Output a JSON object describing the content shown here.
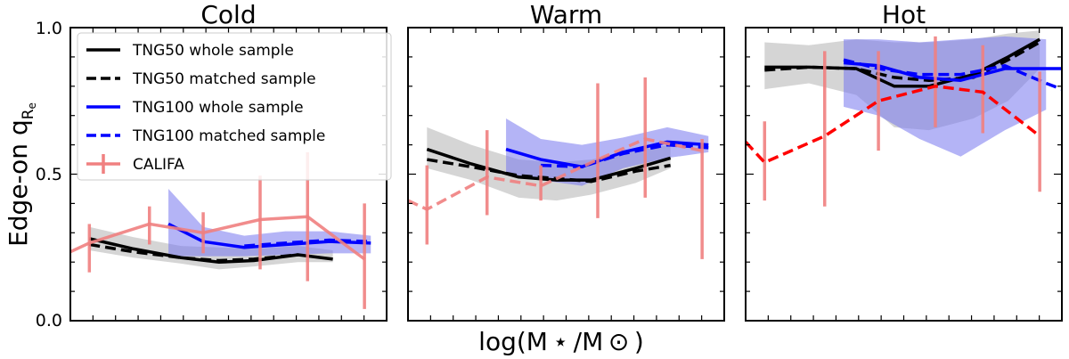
{
  "figure": {
    "ylabel_main": "Edge-on q",
    "ylabel_sub": "R",
    "ylabel_subsub": "e",
    "xlabel": "log(M ⋆ /M ⊙ )",
    "yticks": [
      "0.0",
      "0.5",
      "1.0"
    ]
  },
  "legend": [
    {
      "label": "TNG50 whole sample",
      "color": "#000000",
      "dash": "solid",
      "errorbar": false
    },
    {
      "label": "TNG50 matched sample",
      "color": "#000000",
      "dash": "dashed",
      "errorbar": false
    },
    {
      "label": "TNG100 whole sample",
      "color": "#0000ff",
      "dash": "solid",
      "errorbar": false
    },
    {
      "label": "TNG100 matched sample",
      "color": "#0000ff",
      "dash": "dashed",
      "errorbar": false
    },
    {
      "label": "CALIFA",
      "color": "#f08080",
      "dash": "solid",
      "errorbar": true
    }
  ],
  "chart_data": [
    {
      "type": "line",
      "title": "Cold",
      "ylim": [
        0,
        1
      ],
      "series": [
        {
          "name": "TNG50 whole sample",
          "color": "#000000",
          "dash": "solid",
          "x": [
            0.06,
            0.2,
            0.35,
            0.47,
            0.58,
            0.72,
            0.83
          ],
          "y": [
            0.28,
            0.245,
            0.215,
            0.2,
            0.205,
            0.225,
            0.21
          ]
        },
        {
          "name": "TNG50 matched sample",
          "color": "#000000",
          "dash": "dashed",
          "x": [
            0.06,
            0.2,
            0.35,
            0.47,
            0.58,
            0.72
          ],
          "y": [
            0.26,
            0.235,
            0.215,
            0.205,
            0.21,
            0.225
          ]
        },
        {
          "name": "TNG50 band",
          "kind": "band",
          "color": "#bebebe",
          "x": [
            0.06,
            0.2,
            0.35,
            0.47,
            0.58,
            0.72,
            0.83
          ],
          "lo": [
            0.24,
            0.215,
            0.195,
            0.175,
            0.185,
            0.2,
            0.2
          ],
          "hi": [
            0.32,
            0.285,
            0.255,
            0.25,
            0.245,
            0.255,
            0.24
          ]
        },
        {
          "name": "TNG100 whole sample",
          "color": "#0000ff",
          "dash": "solid",
          "x": [
            0.31,
            0.42,
            0.55,
            0.68,
            0.82,
            0.95
          ],
          "y": [
            0.33,
            0.27,
            0.25,
            0.26,
            0.27,
            0.265
          ]
        },
        {
          "name": "TNG100 matched sample",
          "color": "#0000ff",
          "dash": "dashed",
          "x": [
            0.55,
            0.68,
            0.82,
            0.95
          ],
          "y": [
            0.255,
            0.265,
            0.275,
            0.27
          ]
        },
        {
          "name": "TNG100 band",
          "kind": "band",
          "color": "#7777ee",
          "x": [
            0.31,
            0.42,
            0.55,
            0.68,
            0.82,
            0.95
          ],
          "lo": [
            0.22,
            0.22,
            0.22,
            0.225,
            0.23,
            0.23
          ],
          "hi": [
            0.45,
            0.32,
            0.29,
            0.305,
            0.305,
            0.29
          ]
        },
        {
          "name": "CALIFA",
          "color": "#f08080",
          "dash": "solid",
          "errorbar": true,
          "x": [
            0.0,
            0.06,
            0.25,
            0.42,
            0.6,
            0.75,
            0.93
          ],
          "y": [
            0.235,
            0.265,
            0.33,
            0.3,
            0.345,
            0.355,
            0.21
          ],
          "err_lo": [
            0.0,
            0.1,
            0.07,
            0.07,
            0.17,
            0.22,
            0.17
          ],
          "err_hi": [
            0.0,
            0.065,
            0.06,
            0.07,
            0.15,
            0.22,
            0.19
          ]
        }
      ]
    },
    {
      "type": "line",
      "title": "Warm",
      "ylim": [
        0,
        1
      ],
      "series": [
        {
          "name": "TNG50 whole sample",
          "color": "#000000",
          "dash": "solid",
          "x": [
            0.06,
            0.2,
            0.35,
            0.47,
            0.58,
            0.72,
            0.83
          ],
          "y": [
            0.585,
            0.535,
            0.49,
            0.48,
            0.48,
            0.52,
            0.555
          ]
        },
        {
          "name": "TNG50 matched sample",
          "color": "#000000",
          "dash": "dashed",
          "x": [
            0.06,
            0.2,
            0.35,
            0.47,
            0.58,
            0.72,
            0.83
          ],
          "y": [
            0.55,
            0.525,
            0.495,
            0.485,
            0.475,
            0.51,
            0.53
          ]
        },
        {
          "name": "TNG50 band",
          "kind": "band",
          "color": "#bebebe",
          "x": [
            0.06,
            0.2,
            0.35,
            0.47,
            0.58,
            0.72,
            0.83
          ],
          "lo": [
            0.52,
            0.48,
            0.42,
            0.41,
            0.43,
            0.47,
            0.52
          ],
          "hi": [
            0.66,
            0.6,
            0.55,
            0.54,
            0.55,
            0.58,
            0.6
          ]
        },
        {
          "name": "TNG100 whole sample",
          "color": "#0000ff",
          "dash": "solid",
          "x": [
            0.31,
            0.42,
            0.55,
            0.68,
            0.82,
            0.95
          ],
          "y": [
            0.585,
            0.55,
            0.525,
            0.575,
            0.61,
            0.6
          ]
        },
        {
          "name": "TNG100 matched sample",
          "color": "#0000ff",
          "dash": "dashed",
          "x": [
            0.42,
            0.55,
            0.68,
            0.82,
            0.95
          ],
          "y": [
            0.53,
            0.525,
            0.57,
            0.6,
            0.59
          ]
        },
        {
          "name": "TNG100 band",
          "kind": "band",
          "color": "#7777ee",
          "x": [
            0.31,
            0.42,
            0.55,
            0.68,
            0.82,
            0.95
          ],
          "lo": [
            0.5,
            0.48,
            0.46,
            0.52,
            0.555,
            0.575
          ],
          "hi": [
            0.69,
            0.62,
            0.6,
            0.625,
            0.66,
            0.63
          ]
        },
        {
          "name": "CALIFA",
          "color": "#f08080",
          "dash": "dashed",
          "errorbar": true,
          "x": [
            0.0,
            0.06,
            0.25,
            0.42,
            0.6,
            0.75,
            0.93
          ],
          "y": [
            0.41,
            0.38,
            0.49,
            0.46,
            0.55,
            0.62,
            0.58
          ],
          "err_lo": [
            0.0,
            0.0,
            0.0,
            0.0,
            0.0,
            0.0,
            0.0
          ],
          "err_hi": [
            0.0,
            0.0,
            0.0,
            0.0,
            0.0,
            0.0,
            0.0
          ]
        },
        {
          "name": "CALIFA error bars",
          "kind": "errorbars",
          "color": "#f08080",
          "x": [
            0.06,
            0.25,
            0.42,
            0.6,
            0.75,
            0.93
          ],
          "y": [
            0.38,
            0.49,
            0.46,
            0.55,
            0.62,
            0.58
          ],
          "err_lo": [
            0.12,
            0.13,
            0.05,
            0.2,
            0.2,
            0.37
          ],
          "err_hi": [
            0.15,
            0.16,
            0.07,
            0.26,
            0.21,
            0.04
          ]
        }
      ]
    },
    {
      "type": "line",
      "title": "Hot",
      "ylim": [
        0,
        1
      ],
      "series": [
        {
          "name": "TNG50 whole sample",
          "color": "#000000",
          "dash": "solid",
          "x": [
            0.06,
            0.2,
            0.35,
            0.47,
            0.58,
            0.72,
            0.83,
            0.93
          ],
          "y": [
            0.865,
            0.865,
            0.86,
            0.8,
            0.8,
            0.84,
            0.9,
            0.96
          ]
        },
        {
          "name": "TNG50 matched sample",
          "color": "#000000",
          "dash": "dashed",
          "x": [
            0.06,
            0.2,
            0.35,
            0.47,
            0.58,
            0.72,
            0.83,
            0.93
          ],
          "y": [
            0.855,
            0.865,
            0.86,
            0.83,
            0.82,
            0.83,
            0.89,
            0.95
          ]
        },
        {
          "name": "TNG50 band",
          "kind": "band",
          "color": "#bebebe",
          "x": [
            0.06,
            0.2,
            0.35,
            0.47,
            0.58,
            0.72,
            0.83,
            0.93
          ],
          "lo": [
            0.79,
            0.81,
            0.77,
            0.66,
            0.65,
            0.69,
            0.75,
            0.86
          ],
          "hi": [
            0.95,
            0.94,
            0.96,
            0.95,
            0.95,
            0.96,
            0.98,
            0.99
          ]
        },
        {
          "name": "TNG100 whole sample",
          "color": "#0000ff",
          "dash": "solid",
          "x": [
            0.31,
            0.42,
            0.55,
            0.68,
            0.82,
            0.95,
            1.0
          ],
          "y": [
            0.88,
            0.87,
            0.83,
            0.82,
            0.86,
            0.86,
            0.86
          ]
        },
        {
          "name": "TNG100 matched sample",
          "color": "#0000ff",
          "dash": "dashed",
          "x": [
            0.31,
            0.42,
            0.55,
            0.68,
            0.82,
            0.95,
            1.0
          ],
          "y": [
            0.89,
            0.86,
            0.84,
            0.84,
            0.87,
            0.81,
            0.79
          ]
        },
        {
          "name": "TNG100 band",
          "kind": "band",
          "color": "#7777ee",
          "x": [
            0.31,
            0.42,
            0.55,
            0.68,
            0.82,
            0.95
          ],
          "lo": [
            0.73,
            0.7,
            0.62,
            0.56,
            0.65,
            0.72
          ],
          "hi": [
            0.96,
            0.96,
            0.95,
            0.96,
            0.97,
            0.96
          ]
        },
        {
          "name": "CALIFA",
          "color": "#ff0000",
          "dash": "dashed",
          "errorbar": true,
          "x": [
            0.0,
            0.06,
            0.25,
            0.42,
            0.6,
            0.75,
            0.93
          ],
          "y": [
            0.61,
            0.54,
            0.63,
            0.75,
            0.8,
            0.78,
            0.63
          ],
          "err_lo": [
            0.0,
            0.13,
            0.24,
            0.17,
            0.14,
            0.14,
            0.19
          ],
          "err_hi": [
            0.0,
            0.14,
            0.29,
            0.17,
            0.17,
            0.16,
            0.22
          ]
        }
      ]
    }
  ]
}
